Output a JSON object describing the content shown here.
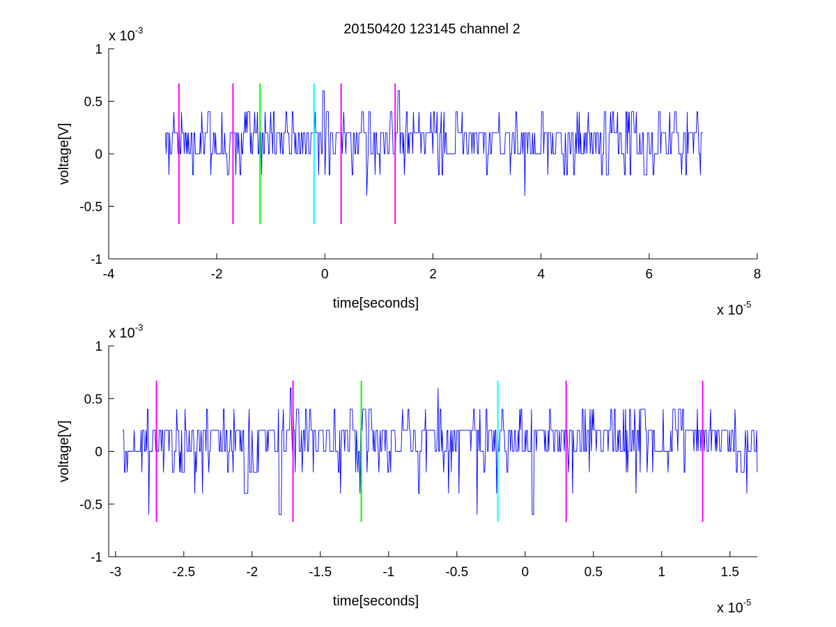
{
  "figure": {
    "title": "20150420 123145 channel 2"
  },
  "colors": {
    "signal": "#0000ff",
    "magenta": "#ff00ff",
    "green": "#00ff00",
    "cyan": "#00ffff",
    "axis": "#000000"
  },
  "chart_data": [
    {
      "type": "line",
      "title": "20150420 123145 channel 2",
      "xlabel": "time[seconds]",
      "ylabel": "voltage[V]",
      "x_exponent": "x 10",
      "x_exponent_power": "-5",
      "y_exponent": "x 10",
      "y_exponent_power": "-3",
      "xlim": [
        -4,
        8
      ],
      "ylim": [
        -1,
        1
      ],
      "x_ticks": [
        -4,
        -2,
        0,
        2,
        4,
        6,
        8
      ],
      "x_tick_labels": [
        "-4",
        "-2",
        "0",
        "2",
        "4",
        "6",
        "8"
      ],
      "y_ticks": [
        -1,
        -0.5,
        0,
        0.5,
        1
      ],
      "y_tick_labels": [
        "-1",
        "-0.5",
        "0",
        "0.5",
        "1"
      ],
      "grid": false,
      "signal": {
        "x_range": [
          -2.95,
          7.0
        ],
        "levels": [
          -0.6,
          -0.4,
          -0.2,
          0,
          0.2,
          0.4,
          0.6
        ],
        "baseline": 0.2,
        "seed": 7
      },
      "markers": [
        {
          "x": -2.7,
          "y_range": [
            -0.67,
            0.67
          ],
          "color": "magenta"
        },
        {
          "x": -1.7,
          "y_range": [
            -0.67,
            0.67
          ],
          "color": "magenta"
        },
        {
          "x": -1.2,
          "y_range": [
            -0.67,
            0.67
          ],
          "color": "green"
        },
        {
          "x": -0.2,
          "y_range": [
            -0.67,
            0.67
          ],
          "color": "cyan"
        },
        {
          "x": 0.3,
          "y_range": [
            -0.67,
            0.67
          ],
          "color": "magenta"
        },
        {
          "x": 1.3,
          "y_range": [
            -0.67,
            0.67
          ],
          "color": "magenta"
        }
      ]
    },
    {
      "type": "line",
      "title": "",
      "xlabel": "time[seconds]",
      "ylabel": "voltage[V]",
      "x_exponent": "x 10",
      "x_exponent_power": "-5",
      "y_exponent": "x 10",
      "y_exponent_power": "-3",
      "xlim": [
        -3.05,
        1.7
      ],
      "ylim": [
        -1,
        1
      ],
      "x_ticks": [
        -3,
        -2.5,
        -2,
        -1.5,
        -1,
        -0.5,
        0,
        0.5,
        1,
        1.5
      ],
      "x_tick_labels": [
        "-3",
        "-2.5",
        "-2",
        "-1.5",
        "-1",
        "-0.5",
        "0",
        "0.5",
        "1",
        "1.5"
      ],
      "y_ticks": [
        -1,
        -0.5,
        0,
        0.5,
        1
      ],
      "y_tick_labels": [
        "-1",
        "-0.5",
        "0",
        "0.5",
        "1"
      ],
      "grid": false,
      "signal": {
        "x_range": [
          -2.95,
          1.7
        ],
        "levels": [
          -0.6,
          -0.4,
          -0.2,
          0,
          0.2,
          0.4,
          0.6
        ],
        "baseline": 0.2,
        "seed": 13
      },
      "markers": [
        {
          "x": -2.7,
          "y_range": [
            -0.67,
            0.67
          ],
          "color": "magenta"
        },
        {
          "x": -1.7,
          "y_range": [
            -0.67,
            0.67
          ],
          "color": "magenta"
        },
        {
          "x": -1.2,
          "y_range": [
            -0.67,
            0.67
          ],
          "color": "green"
        },
        {
          "x": -0.2,
          "y_range": [
            -0.67,
            0.67
          ],
          "color": "cyan"
        },
        {
          "x": 0.3,
          "y_range": [
            -0.67,
            0.67
          ],
          "color": "magenta"
        },
        {
          "x": 1.3,
          "y_range": [
            -0.67,
            0.67
          ],
          "color": "magenta"
        }
      ]
    }
  ]
}
